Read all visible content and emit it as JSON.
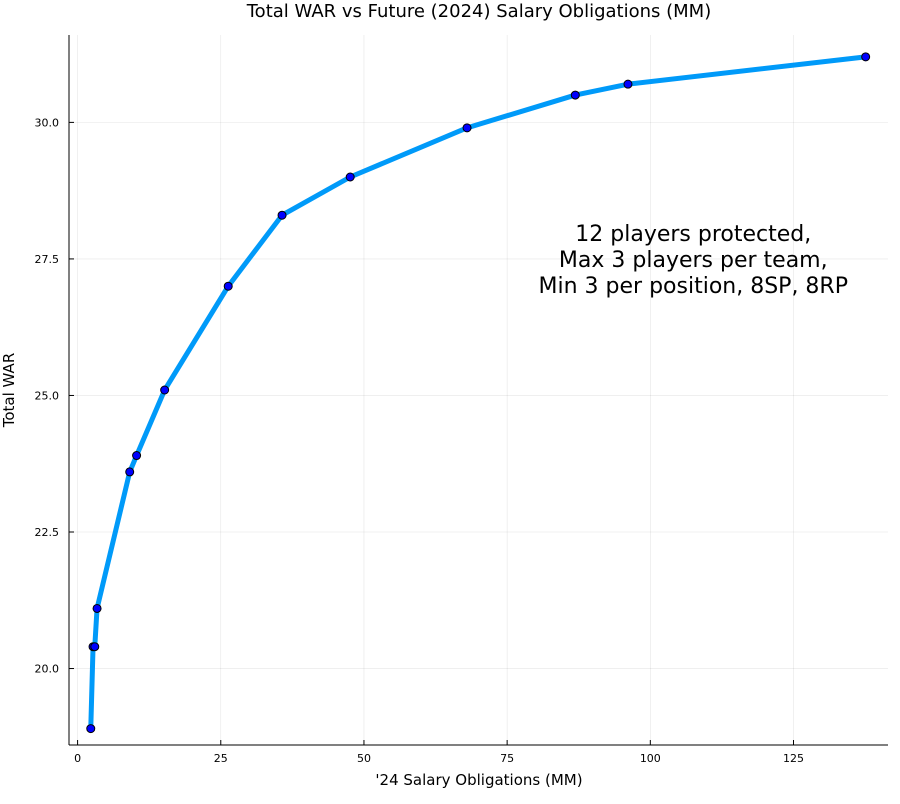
{
  "chart_data": {
    "type": "line",
    "title": "Total WAR vs Future (2024) Salary Obligations (MM)",
    "xlabel": "'24 Salary Obligations (MM)",
    "ylabel": "Total WAR",
    "xlim": [
      -1.5,
      141.5
    ],
    "ylim": [
      18.6,
      31.6
    ],
    "xticks": [
      0,
      25,
      50,
      75,
      100,
      125
    ],
    "xtick_labels": [
      "0",
      "25",
      "50",
      "75",
      "100",
      "125"
    ],
    "yticks": [
      20.0,
      22.5,
      25.0,
      27.5,
      30.0
    ],
    "ytick_labels": [
      "20.0",
      "22.5",
      "25.0",
      "27.5",
      "30.0"
    ],
    "grid": true,
    "legend": "none",
    "series": [
      {
        "line_color": "#009af9",
        "marker_color": "#0000ff",
        "x": [
          2.3,
          2.7,
          3.0,
          3.4,
          9.1,
          10.3,
          15.2,
          26.3,
          35.7,
          47.6,
          68.0,
          86.9,
          96.1,
          137.6
        ],
        "y": [
          18.9,
          20.4,
          20.4,
          21.1,
          23.6,
          23.9,
          25.1,
          27.0,
          28.3,
          29.0,
          29.9,
          30.5,
          30.7,
          31.2
        ]
      }
    ],
    "annotation": {
      "lines": [
        "12 players protected,",
        "Max 3 players per team,",
        "Min 3 per position, 8SP, 8RP"
      ],
      "x": 107.5,
      "y": 27.5
    }
  }
}
